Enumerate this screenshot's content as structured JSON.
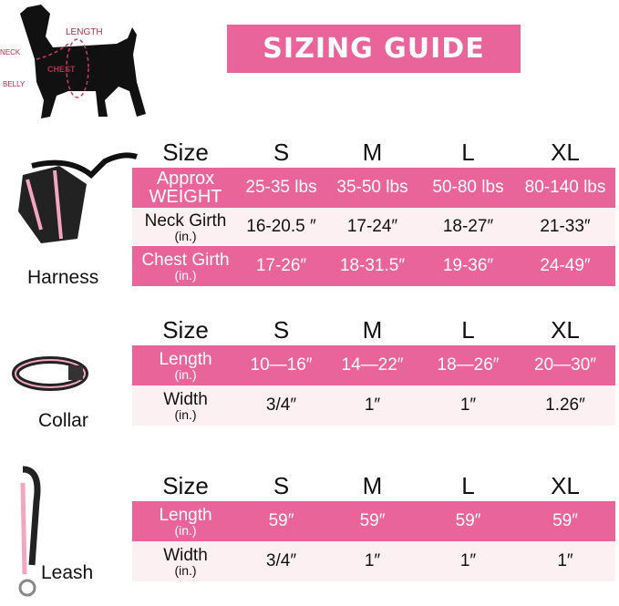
{
  "diagram": {
    "labels": [
      "LENGTH",
      "NECK",
      "CHEST",
      "BELLY"
    ]
  },
  "title": "SIZING GUIDE",
  "sizes": [
    "Size",
    "S",
    "M",
    "L",
    "XL"
  ],
  "harness": {
    "label": "Harness",
    "rows": [
      {
        "label": "Approx",
        "label2": "WEIGHT",
        "values": [
          "25-35 lbs",
          "35-50 lbs",
          "50-80 lbs",
          "80-140 lbs"
        ]
      },
      {
        "label": "Neck Girth",
        "label2": "(in.)",
        "values": [
          "16-20.5 ″",
          "17-24″",
          "18-27″",
          "21-33″"
        ]
      },
      {
        "label": "Chest Girth",
        "label2": "(in.)",
        "values": [
          "17-26″",
          "18-31.5″",
          "19-36″",
          "24-49″"
        ]
      }
    ]
  },
  "collar": {
    "label": "Collar",
    "rows": [
      {
        "label": "Length",
        "label2": "(in.)",
        "values": [
          "10—16″",
          "14—22″",
          "18—26″",
          "20—30″"
        ]
      },
      {
        "label": "Width",
        "label2": "(in.)",
        "values": [
          "3/4″",
          "1″",
          "1″",
          "1.26″"
        ]
      }
    ]
  },
  "leash": {
    "label": "Leash",
    "rows": [
      {
        "label": "Length",
        "label2": "(in.)",
        "values": [
          "59″",
          "59″",
          "59″",
          "59″"
        ]
      },
      {
        "label": "Width",
        "label2": "(in.)",
        "values": [
          "3/4″",
          "1″",
          "1″",
          "1″"
        ]
      }
    ]
  },
  "colors": {
    "accent": "#e8649a",
    "light": "#fdf0f3",
    "diagram": "#b0304a"
  }
}
